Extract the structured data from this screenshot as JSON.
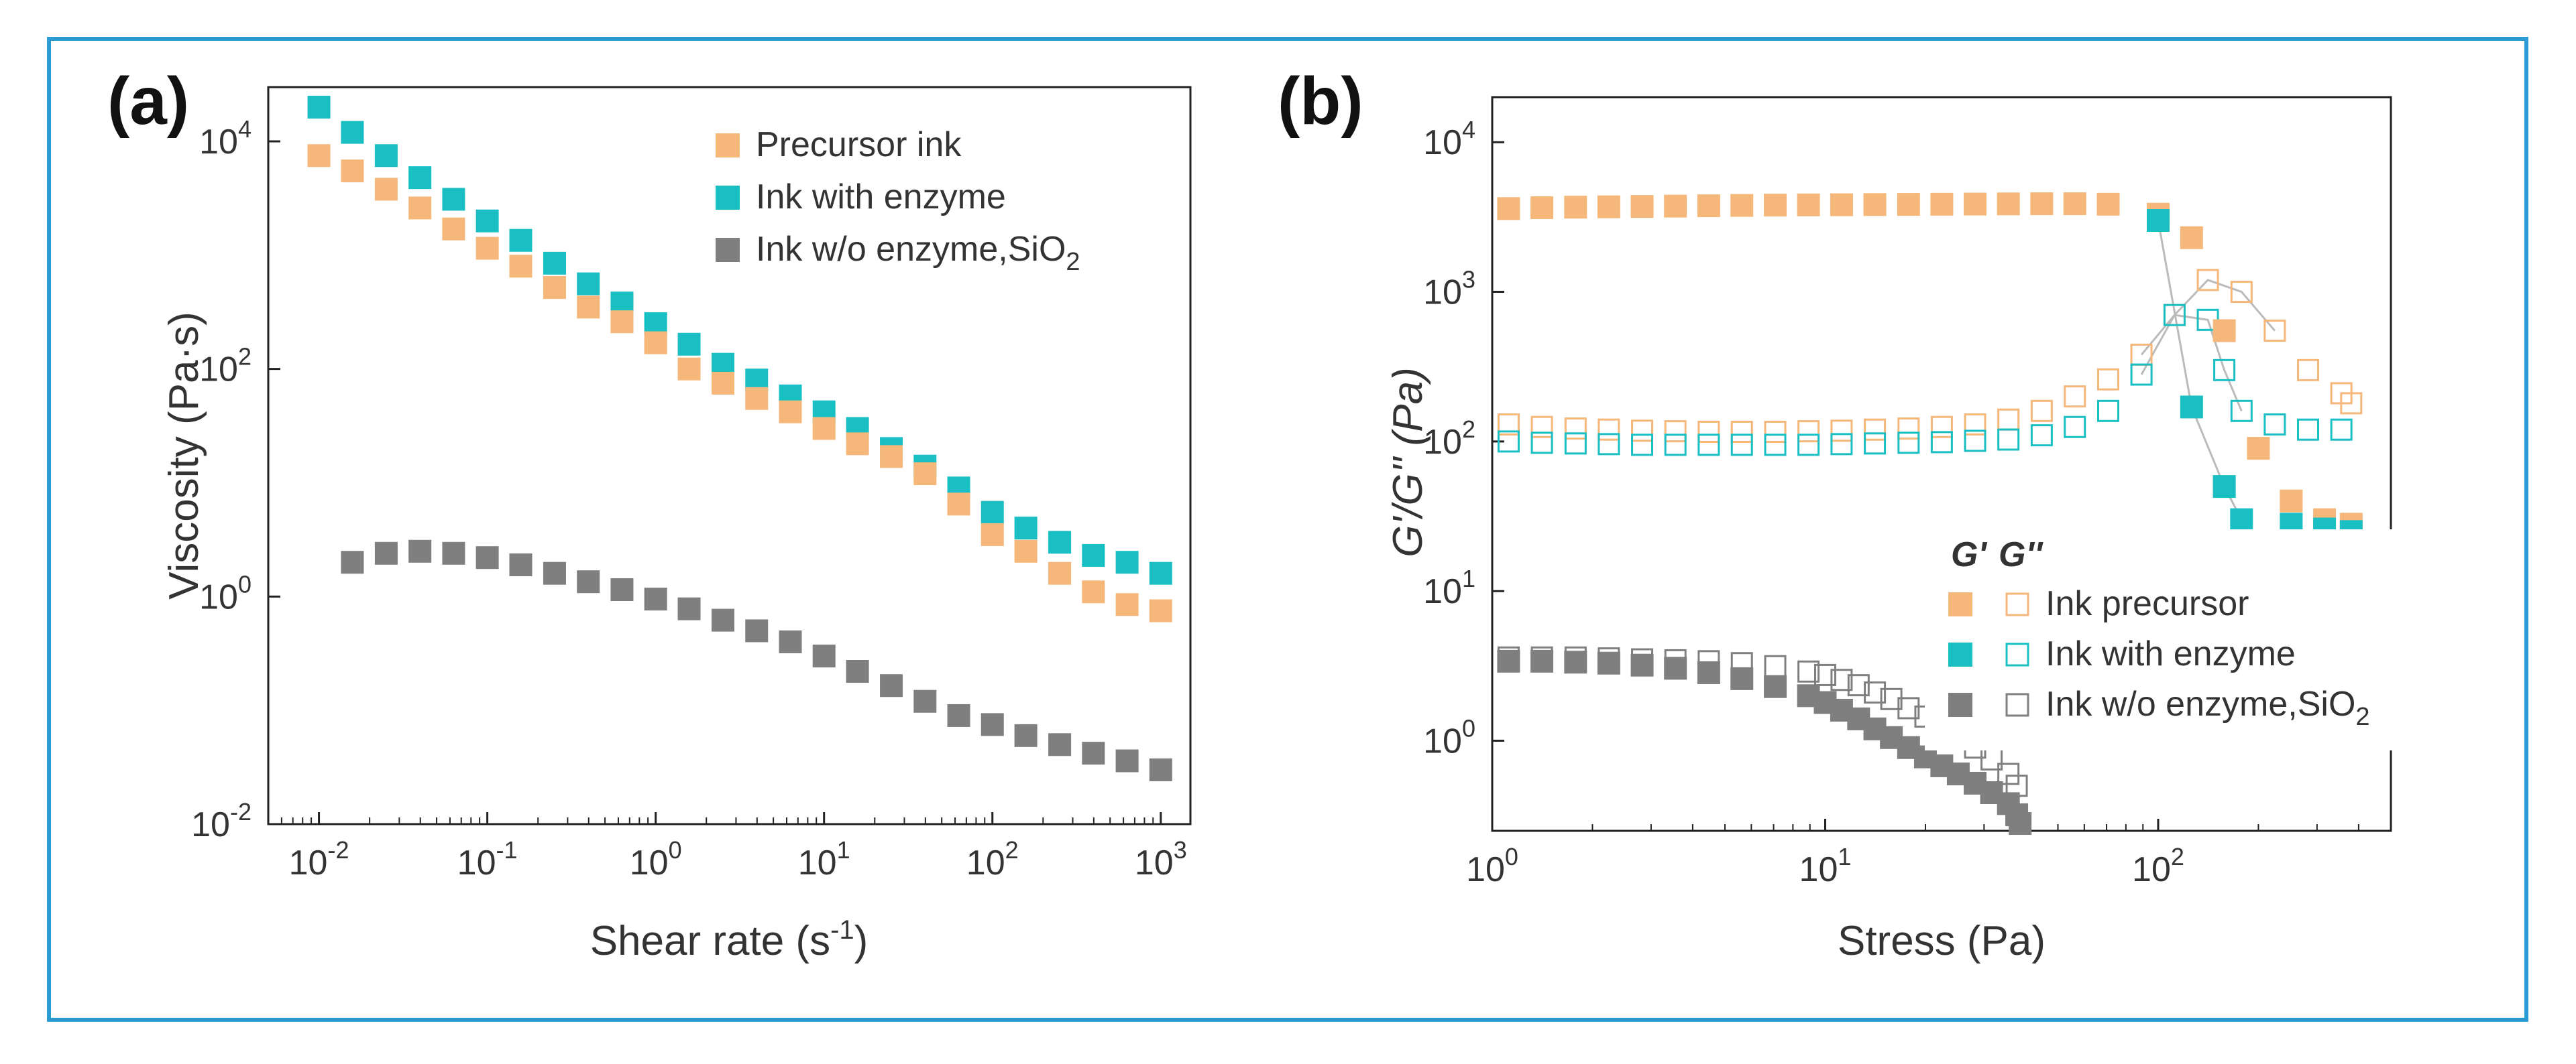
{
  "figure": {
    "border_color": "#2b9bd6"
  },
  "chart_data": [
    {
      "panel": "(a)",
      "type": "scatter",
      "xscale": "log",
      "yscale": "log",
      "xlim": [
        0.005,
        1500
      ],
      "ylim": [
        0.01,
        30000
      ],
      "xticks": [
        0.01,
        0.1,
        1,
        10,
        100,
        1000
      ],
      "yticks": [
        0.01,
        1,
        100,
        10000
      ],
      "xtick_labels": [
        {
          "base": "10",
          "exp": "-2"
        },
        {
          "base": "10",
          "exp": "-1"
        },
        {
          "base": "10",
          "exp": "0"
        },
        {
          "base": "10",
          "exp": "1"
        },
        {
          "base": "10",
          "exp": "2"
        },
        {
          "base": "10",
          "exp": "3"
        }
      ],
      "ytick_labels": [
        {
          "base": "10",
          "exp": "-2"
        },
        {
          "base": "10",
          "exp": "0"
        },
        {
          "base": "10",
          "exp": "2"
        },
        {
          "base": "10",
          "exp": "4"
        }
      ],
      "xlabel": {
        "text": "Shear rate (s",
        "sup": "-1",
        "tail": ")"
      },
      "ylabel": "Viscosity (Pa·s)",
      "legend": {
        "position": "top-right",
        "entries": [
          {
            "text": "Precursor ink",
            "sub": "",
            "tail": "",
            "color": "#f5b87a",
            "filled": true
          },
          {
            "text": "Ink with enzyme",
            "sub": "",
            "tail": "",
            "color": "#1abfc4",
            "filled": true
          },
          {
            "text": "Ink w/o enzyme,SiO",
            "sub": "2",
            "tail": "",
            "color": "#7f7f7f",
            "filled": true
          }
        ]
      },
      "series": [
        {
          "name": "Ink with enzyme",
          "color": "#1abfc4",
          "filled": true,
          "x": [
            0.01,
            0.0158,
            0.0251,
            0.0398,
            0.0631,
            0.1,
            0.158,
            0.251,
            0.398,
            0.631,
            1,
            1.58,
            2.51,
            3.98,
            6.31,
            10,
            15.8,
            25.1,
            39.8,
            63.1,
            100,
            158,
            251,
            398,
            631,
            1000
          ],
          "y": [
            20000,
            12000,
            7500,
            4800,
            3100,
            2000,
            1350,
            850,
            560,
            380,
            250,
            165,
            110,
            80,
            58,
            42,
            30,
            20,
            14,
            9,
            5.5,
            4.0,
            3.0,
            2.3,
            2.0,
            1.6
          ]
        },
        {
          "name": "Precursor ink",
          "color": "#f5b87a",
          "filled": true,
          "x": [
            0.01,
            0.0158,
            0.0251,
            0.0398,
            0.0631,
            0.1,
            0.158,
            0.251,
            0.398,
            0.631,
            1,
            1.58,
            2.51,
            3.98,
            6.31,
            10,
            15.8,
            25.1,
            39.8,
            63.1,
            100,
            158,
            251,
            398,
            631,
            1000
          ],
          "y": [
            7500,
            5500,
            3800,
            2600,
            1700,
            1150,
            800,
            520,
            350,
            260,
            170,
            100,
            75,
            55,
            42,
            30,
            22,
            17,
            12,
            6.5,
            3.5,
            2.5,
            1.6,
            1.1,
            0.85,
            0.75
          ]
        },
        {
          "name": "Ink w/o enzyme,SiO2",
          "color": "#7f7f7f",
          "filled": true,
          "x": [
            0.0158,
            0.0251,
            0.0398,
            0.0631,
            0.1,
            0.158,
            0.251,
            0.398,
            0.631,
            1,
            1.58,
            2.51,
            3.98,
            6.31,
            10,
            15.8,
            25.1,
            39.8,
            63.1,
            100,
            158,
            251,
            398,
            631,
            1000
          ],
          "y": [
            2.0,
            2.4,
            2.5,
            2.4,
            2.2,
            1.9,
            1.6,
            1.35,
            1.15,
            0.95,
            0.78,
            0.62,
            0.5,
            0.4,
            0.3,
            0.22,
            0.165,
            0.12,
            0.09,
            0.075,
            0.06,
            0.05,
            0.042,
            0.036,
            0.03
          ]
        }
      ]
    },
    {
      "panel": "(b)",
      "type": "scatter",
      "xscale": "log",
      "yscale": "log",
      "xlim": [
        1,
        500
      ],
      "ylim": [
        0.25,
        20000
      ],
      "xticks": [
        1,
        10,
        100
      ],
      "yticks": [
        1,
        10,
        100,
        1000,
        10000
      ],
      "xtick_labels": [
        {
          "base": "10",
          "exp": "0"
        },
        {
          "base": "10",
          "exp": "1"
        },
        {
          "base": "10",
          "exp": "2"
        }
      ],
      "ytick_labels": [
        {
          "base": "10",
          "exp": "0"
        },
        {
          "base": "10",
          "exp": "1"
        },
        {
          "base": "10",
          "exp": "2"
        },
        {
          "base": "10",
          "exp": "3"
        },
        {
          "base": "10",
          "exp": "4"
        }
      ],
      "xlabel": {
        "text": "Stress (Pa)",
        "sup": "",
        "tail": ""
      },
      "ylabel": "G'/G'' (Pa)",
      "legend": {
        "position": "lower-right",
        "header_gp": "G'",
        "header_gpp": "G''",
        "entries": [
          {
            "text": "Ink precursor",
            "sub": "",
            "tail": "",
            "color": "#f5b87a"
          },
          {
            "text": "Ink with enzyme",
            "sub": "",
            "tail": "",
            "color": "#1abfc4"
          },
          {
            "text": "Ink w/o enzyme,SiO",
            "sub": "2",
            "tail": "",
            "color": "#7f7f7f"
          }
        ]
      },
      "series": [
        {
          "name": "Ink precursor G''",
          "color": "#f5b87a",
          "filled": false,
          "x": [
            1.12,
            1.41,
            1.78,
            2.24,
            2.82,
            3.55,
            4.47,
            5.62,
            7.08,
            8.91,
            11.2,
            14.1,
            17.8,
            22.4,
            28.2,
            35.5,
            44.7,
            56.2,
            70.8,
            89.1,
            112,
            141,
            178,
            224,
            282,
            355,
            380
          ],
          "y": [
            130,
            125,
            122,
            120,
            118,
            117,
            116,
            116,
            116,
            117,
            118,
            120,
            122,
            125,
            130,
            140,
            160,
            200,
            260,
            380,
            700,
            1200,
            1000,
            550,
            300,
            210,
            180
          ]
        },
        {
          "name": "Ink with enzyme G''",
          "color": "#1abfc4",
          "filled": false,
          "x": [
            1.12,
            1.41,
            1.78,
            2.24,
            2.82,
            3.55,
            4.47,
            5.62,
            7.08,
            8.91,
            11.2,
            14.1,
            17.8,
            22.4,
            28.2,
            35.5,
            44.7,
            56.2,
            70.8,
            89.1,
            112,
            141,
            158,
            178,
            224,
            282,
            355
          ],
          "y": [
            100,
            98,
            97,
            96,
            95,
            95,
            95,
            95,
            95,
            95,
            96,
            97,
            98,
            99,
            101,
            103,
            110,
            125,
            160,
            280,
            700,
            650,
            300,
            160,
            130,
            120,
            120
          ]
        },
        {
          "name": "Ink w/o enzyme,SiO2 G''",
          "color": "#7f7f7f",
          "filled": false,
          "x": [
            1.12,
            1.41,
            1.78,
            2.24,
            2.82,
            3.55,
            4.47,
            5.62,
            7.08,
            8.91,
            10,
            11.2,
            12.6,
            14.1,
            15.8,
            17.8,
            20,
            22.4,
            25.1,
            28.2,
            31.6,
            35.5,
            37.6
          ],
          "y": [
            3.6,
            3.6,
            3.6,
            3.55,
            3.5,
            3.45,
            3.4,
            3.3,
            3.15,
            2.9,
            2.75,
            2.55,
            2.35,
            2.1,
            1.9,
            1.65,
            1.45,
            1.25,
            1.05,
            0.9,
            0.75,
            0.6,
            0.5
          ]
        },
        {
          "name": "Ink precursor G'",
          "color": "#f5b87a",
          "filled": true,
          "x": [
            1.12,
            1.41,
            1.78,
            2.24,
            2.82,
            3.55,
            4.47,
            5.62,
            7.08,
            8.91,
            11.2,
            14.1,
            17.8,
            22.4,
            28.2,
            35.5,
            44.7,
            56.2,
            70.8,
            100,
            126,
            158,
            200,
            251,
            316,
            380
          ],
          "y": [
            3600,
            3650,
            3680,
            3700,
            3720,
            3740,
            3760,
            3780,
            3800,
            3810,
            3820,
            3830,
            3840,
            3850,
            3860,
            3870,
            3880,
            3880,
            3850,
            3300,
            2300,
            550,
            90,
            40,
            30,
            28
          ]
        },
        {
          "name": "Ink with enzyme G'",
          "color": "#1abfc4",
          "filled": true,
          "x": [
            100,
            126,
            158,
            178,
            251,
            316,
            380
          ],
          "y": [
            3000,
            170,
            50,
            30,
            28,
            26,
            25
          ]
        },
        {
          "name": "Ink w/o enzyme,SiO2 G'",
          "color": "#7f7f7f",
          "filled": true,
          "x": [
            1.12,
            1.41,
            1.78,
            2.24,
            2.82,
            3.55,
            4.47,
            5.62,
            7.08,
            8.91,
            10,
            11.2,
            12.6,
            14.1,
            15.8,
            17.8,
            20,
            22.4,
            25.1,
            28.2,
            31.6,
            35.5,
            37.6,
            38.5
          ],
          "y": [
            3.4,
            3.4,
            3.35,
            3.3,
            3.2,
            3.05,
            2.85,
            2.6,
            2.3,
            2.0,
            1.8,
            1.6,
            1.4,
            1.2,
            1.05,
            0.9,
            0.78,
            0.68,
            0.6,
            0.52,
            0.45,
            0.38,
            0.32,
            0.28
          ]
        }
      ],
      "lines": [
        {
          "color": "#bbbbbb",
          "x": [
            100,
            126,
            158,
            178
          ],
          "y": [
            3000,
            170,
            50,
            30
          ]
        },
        {
          "color": "#bbbbbb",
          "x": [
            89.1,
            112,
            141,
            158,
            178
          ],
          "y": [
            280,
            700,
            650,
            300,
            160
          ]
        },
        {
          "color": "#bbbbbb",
          "x": [
            89.1,
            112,
            141,
            178,
            224
          ],
          "y": [
            380,
            700,
            1200,
            1000,
            550
          ]
        }
      ]
    }
  ]
}
